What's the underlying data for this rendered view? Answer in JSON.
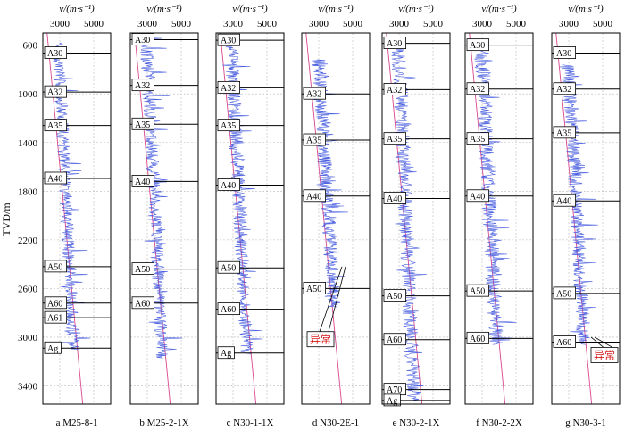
{
  "figure": {
    "y_axis_label": "TVD/m",
    "top_axis_label": "v/(m·s⁻¹)",
    "anomaly_label": "异常"
  },
  "chart_data": {
    "type": "line",
    "xlim": [
      2000,
      6000
    ],
    "ylim": [
      3550,
      500
    ],
    "x_ticks": [
      3000,
      5000
    ],
    "y_ticks": [
      600,
      1000,
      1400,
      1800,
      2200,
      2600,
      3000,
      3400
    ],
    "grid": true,
    "panels": [
      {
        "caption": "a  M25-8-1",
        "top": 580,
        "bottom": 3100,
        "base": 2900,
        "amp": 750,
        "seed": 3,
        "markers": [
          {
            "name": "A30",
            "depth": 665
          },
          {
            "name": "A32",
            "depth": 985
          },
          {
            "name": "A35",
            "depth": 1260
          },
          {
            "name": "A40",
            "depth": 1695
          },
          {
            "name": "A50",
            "depth": 2420
          },
          {
            "name": "A60",
            "depth": 2720
          },
          {
            "name": "A61",
            "depth": 2840
          },
          {
            "name": "Ag",
            "depth": 3090
          }
        ]
      },
      {
        "caption": "b  M25-2-1X",
        "top": 540,
        "bottom": 3170,
        "base": 2950,
        "amp": 800,
        "seed": 11,
        "markers": [
          {
            "name": "A30",
            "depth": 555
          },
          {
            "name": "A32",
            "depth": 930
          },
          {
            "name": "A35",
            "depth": 1250
          },
          {
            "name": "A40",
            "depth": 1720
          },
          {
            "name": "A50",
            "depth": 2440
          },
          {
            "name": "A60",
            "depth": 2720
          }
        ]
      },
      {
        "caption": "c  N30-1-1X",
        "top": 540,
        "bottom": 3140,
        "base": 2900,
        "amp": 820,
        "seed": 19,
        "markers": [
          {
            "name": "A30",
            "depth": 560
          },
          {
            "name": "A32",
            "depth": 950
          },
          {
            "name": "A35",
            "depth": 1260
          },
          {
            "name": "A40",
            "depth": 1750
          },
          {
            "name": "A50",
            "depth": 2430
          },
          {
            "name": "A60",
            "depth": 2770
          },
          {
            "name": "Ag",
            "depth": 3130
          }
        ]
      },
      {
        "caption": "d  N30-2E-1",
        "top": 720,
        "bottom": 2750,
        "base": 3000,
        "amp": 820,
        "seed": 27,
        "markers": [
          {
            "name": "A32",
            "depth": 1000
          },
          {
            "name": "A35",
            "depth": 1380
          },
          {
            "name": "A40",
            "depth": 1840
          },
          {
            "name": "A50",
            "depth": 2600
          }
        ]
      },
      {
        "caption": "e  N30-2-1X",
        "top": 560,
        "bottom": 3520,
        "base": 2950,
        "amp": 880,
        "seed": 35,
        "markers": [
          {
            "name": "A30",
            "depth": 585
          },
          {
            "name": "A32",
            "depth": 965
          },
          {
            "name": "A35",
            "depth": 1370
          },
          {
            "name": "A40",
            "depth": 1860
          },
          {
            "name": "A50",
            "depth": 2660
          },
          {
            "name": "A60",
            "depth": 3020
          },
          {
            "name": "A70",
            "depth": 3430
          },
          {
            "name": "Ag",
            "depth": 3520
          }
        ]
      },
      {
        "caption": "f  N30-2-2X",
        "top": 570,
        "bottom": 3060,
        "base": 2950,
        "amp": 900,
        "seed": 43,
        "markers": [
          {
            "name": "A30",
            "depth": 600
          },
          {
            "name": "A32",
            "depth": 960
          },
          {
            "name": "A35",
            "depth": 1370
          },
          {
            "name": "A40",
            "depth": 1840
          },
          {
            "name": "A50",
            "depth": 2620
          },
          {
            "name": "A60",
            "depth": 3010
          }
        ]
      },
      {
        "caption": "g  N30-3-1",
        "top": 760,
        "bottom": 3060,
        "base": 3000,
        "amp": 850,
        "seed": 51,
        "markers": [
          {
            "name": "A30",
            "depth": 665
          },
          {
            "name": "A32",
            "depth": 960
          },
          {
            "name": "A35",
            "depth": 1320
          },
          {
            "name": "A40",
            "depth": 1880
          },
          {
            "name": "A50",
            "depth": 2640
          },
          {
            "name": "A60",
            "depth": 3040
          }
        ]
      }
    ],
    "anomaly_panels": [
      3,
      6
    ]
  }
}
